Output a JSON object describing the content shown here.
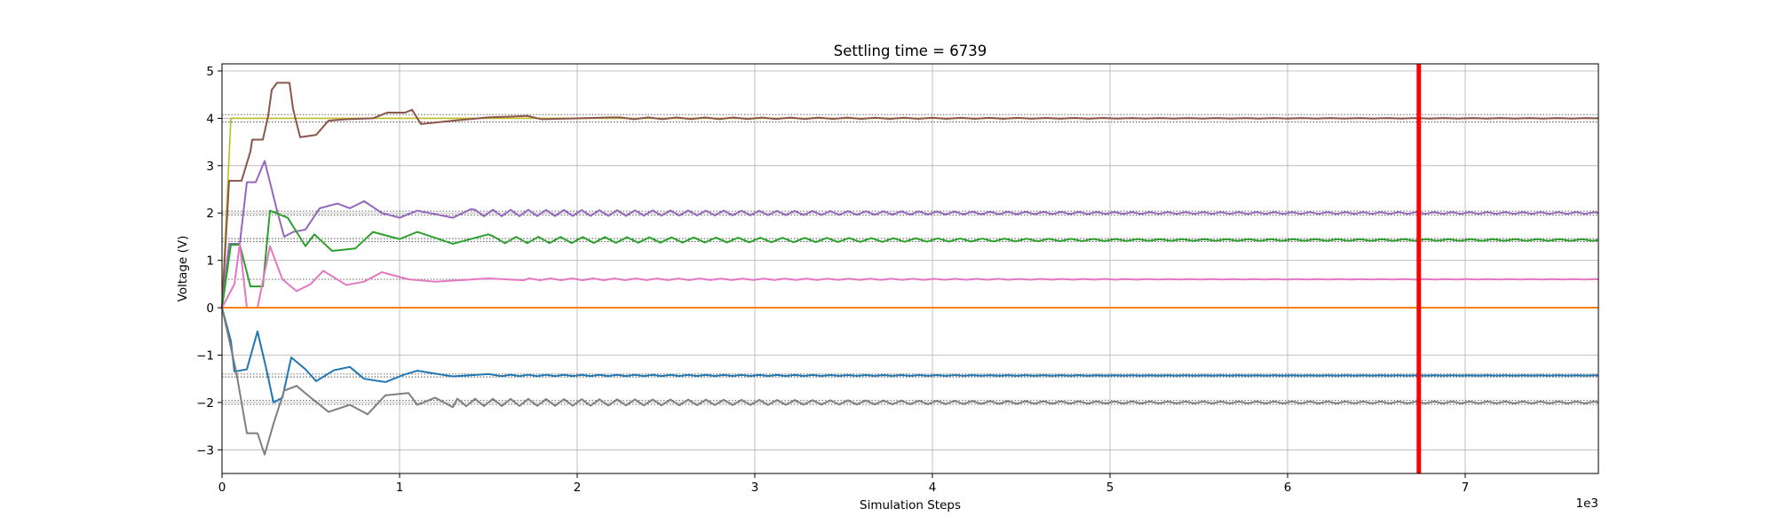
{
  "chart_data": {
    "type": "line",
    "title": "Settling time = 6739",
    "xlabel": "Simulation Steps",
    "ylabel": "Voltage (V)",
    "x_offset_label": "1e3",
    "xlim": [
      0,
      7.75
    ],
    "ylim": [
      -3.5,
      5.15
    ],
    "xticks": [
      0,
      1,
      2,
      3,
      4,
      5,
      6,
      7
    ],
    "xtick_labels": [
      "0",
      "1",
      "2",
      "3",
      "4",
      "5",
      "6",
      "7"
    ],
    "yticks": [
      -3,
      -2,
      -1,
      0,
      1,
      2,
      3,
      4,
      5
    ],
    "ytick_labels": [
      "−3",
      "−2",
      "−1",
      "0",
      "1",
      "2",
      "3",
      "4",
      "5"
    ],
    "grid": true,
    "settling_time": 6.739,
    "settling_line_color": "#ff0000",
    "reference_bands": [
      {
        "value": 4.0,
        "band": 0.08
      },
      {
        "value": 2.0,
        "band": 0.04
      },
      {
        "value": 1.43,
        "band": 0.03
      },
      {
        "value": 0.6,
        "band": 0.0
      },
      {
        "value": -1.43,
        "band": 0.03
      },
      {
        "value": -2.0,
        "band": 0.04
      }
    ],
    "series": [
      {
        "color": "#bcbd22",
        "final": 4.0,
        "initial": 0,
        "rise_end": 0.05,
        "style": "step",
        "points": [
          [
            0,
            0
          ],
          [
            0.05,
            4.0
          ],
          [
            7.75,
            4.0
          ]
        ]
      },
      {
        "color": "#8c564b",
        "final": 4.0,
        "osc_amp": 0.02,
        "osc_period": 0.16,
        "points": [
          [
            0,
            0
          ],
          [
            0.04,
            2.68
          ],
          [
            0.11,
            2.68
          ],
          [
            0.16,
            3.3
          ],
          [
            0.17,
            3.55
          ],
          [
            0.23,
            3.55
          ],
          [
            0.26,
            4.05
          ],
          [
            0.28,
            4.6
          ],
          [
            0.31,
            4.75
          ],
          [
            0.38,
            4.75
          ],
          [
            0.4,
            4.2
          ],
          [
            0.44,
            3.6
          ],
          [
            0.53,
            3.65
          ],
          [
            0.6,
            3.95
          ],
          [
            0.7,
            3.98
          ],
          [
            0.85,
            4.0
          ],
          [
            0.93,
            4.12
          ],
          [
            1.03,
            4.12
          ],
          [
            1.07,
            4.18
          ],
          [
            1.12,
            3.88
          ],
          [
            1.3,
            3.95
          ],
          [
            1.5,
            4.02
          ],
          [
            1.72,
            4.05
          ],
          [
            1.8,
            3.98
          ],
          [
            2.2,
            4.02
          ]
        ]
      },
      {
        "color": "#9467bd",
        "final": 2.0,
        "osc_amp": 0.07,
        "osc_period": 0.1,
        "points": [
          [
            0,
            0
          ],
          [
            0.04,
            1.35
          ],
          [
            0.1,
            1.35
          ],
          [
            0.14,
            2.65
          ],
          [
            0.19,
            2.65
          ],
          [
            0.24,
            3.1
          ],
          [
            0.31,
            2.05
          ],
          [
            0.35,
            1.5
          ],
          [
            0.4,
            1.6
          ],
          [
            0.47,
            1.65
          ],
          [
            0.55,
            2.1
          ],
          [
            0.65,
            2.2
          ],
          [
            0.72,
            2.1
          ],
          [
            0.8,
            2.25
          ],
          [
            0.9,
            2.0
          ],
          [
            1.0,
            1.9
          ],
          [
            1.1,
            2.05
          ],
          [
            1.3,
            1.9
          ],
          [
            1.4,
            2.08
          ]
        ]
      },
      {
        "color": "#2ca02c",
        "final": 1.43,
        "osc_amp": 0.07,
        "osc_period": 0.125,
        "points": [
          [
            0,
            0
          ],
          [
            0.05,
            1.33
          ],
          [
            0.1,
            1.33
          ],
          [
            0.16,
            0.45
          ],
          [
            0.23,
            0.45
          ],
          [
            0.27,
            2.05
          ],
          [
            0.37,
            1.9
          ],
          [
            0.47,
            1.3
          ],
          [
            0.52,
            1.55
          ],
          [
            0.62,
            1.2
          ],
          [
            0.75,
            1.25
          ],
          [
            0.85,
            1.6
          ],
          [
            1.0,
            1.45
          ],
          [
            1.1,
            1.6
          ],
          [
            1.3,
            1.35
          ],
          [
            1.5,
            1.55
          ]
        ]
      },
      {
        "color": "#e377c2",
        "final": 0.6,
        "osc_amp": 0.02,
        "osc_period": 0.12,
        "points": [
          [
            0,
            0
          ],
          [
            0.07,
            0.5
          ],
          [
            0.1,
            1.35
          ],
          [
            0.14,
            0
          ],
          [
            0.2,
            0
          ],
          [
            0.27,
            1.3
          ],
          [
            0.34,
            0.6
          ],
          [
            0.42,
            0.35
          ],
          [
            0.5,
            0.5
          ],
          [
            0.57,
            0.78
          ],
          [
            0.7,
            0.48
          ],
          [
            0.8,
            0.55
          ],
          [
            0.9,
            0.75
          ],
          [
            1.05,
            0.6
          ],
          [
            1.2,
            0.55
          ],
          [
            1.5,
            0.62
          ],
          [
            1.7,
            0.58
          ]
        ]
      },
      {
        "color": "#ff7f0e",
        "final": 0.0,
        "osc_amp": 0.0,
        "osc_period": 0.1,
        "points": [
          [
            0,
            0
          ],
          [
            7.75,
            0
          ]
        ]
      },
      {
        "color": "#1f77b4",
        "final": -1.43,
        "osc_amp": 0.015,
        "osc_period": 0.1,
        "points": [
          [
            0,
            0
          ],
          [
            0.05,
            -0.7
          ],
          [
            0.07,
            -1.35
          ],
          [
            0.14,
            -1.3
          ],
          [
            0.2,
            -0.5
          ],
          [
            0.25,
            -1.3
          ],
          [
            0.29,
            -2.0
          ],
          [
            0.34,
            -1.9
          ],
          [
            0.39,
            -1.05
          ],
          [
            0.47,
            -1.3
          ],
          [
            0.53,
            -1.55
          ],
          [
            0.63,
            -1.32
          ],
          [
            0.72,
            -1.25
          ],
          [
            0.8,
            -1.5
          ],
          [
            0.92,
            -1.57
          ],
          [
            1.02,
            -1.42
          ],
          [
            1.1,
            -1.33
          ],
          [
            1.3,
            -1.45
          ],
          [
            1.5,
            -1.4
          ]
        ]
      },
      {
        "color": "#7f7f7f",
        "final": -2.0,
        "osc_amp": 0.08,
        "osc_period": 0.1,
        "points": [
          [
            0,
            0
          ],
          [
            0.08,
            -1.35
          ],
          [
            0.14,
            -2.65
          ],
          [
            0.2,
            -2.65
          ],
          [
            0.24,
            -3.1
          ],
          [
            0.29,
            -2.45
          ],
          [
            0.35,
            -1.75
          ],
          [
            0.42,
            -1.65
          ],
          [
            0.5,
            -1.9
          ],
          [
            0.6,
            -2.2
          ],
          [
            0.72,
            -2.05
          ],
          [
            0.82,
            -2.25
          ],
          [
            0.92,
            -1.85
          ],
          [
            1.05,
            -1.8
          ],
          [
            1.1,
            -2.05
          ],
          [
            1.2,
            -1.9
          ],
          [
            1.3,
            -2.1
          ]
        ]
      }
    ]
  }
}
